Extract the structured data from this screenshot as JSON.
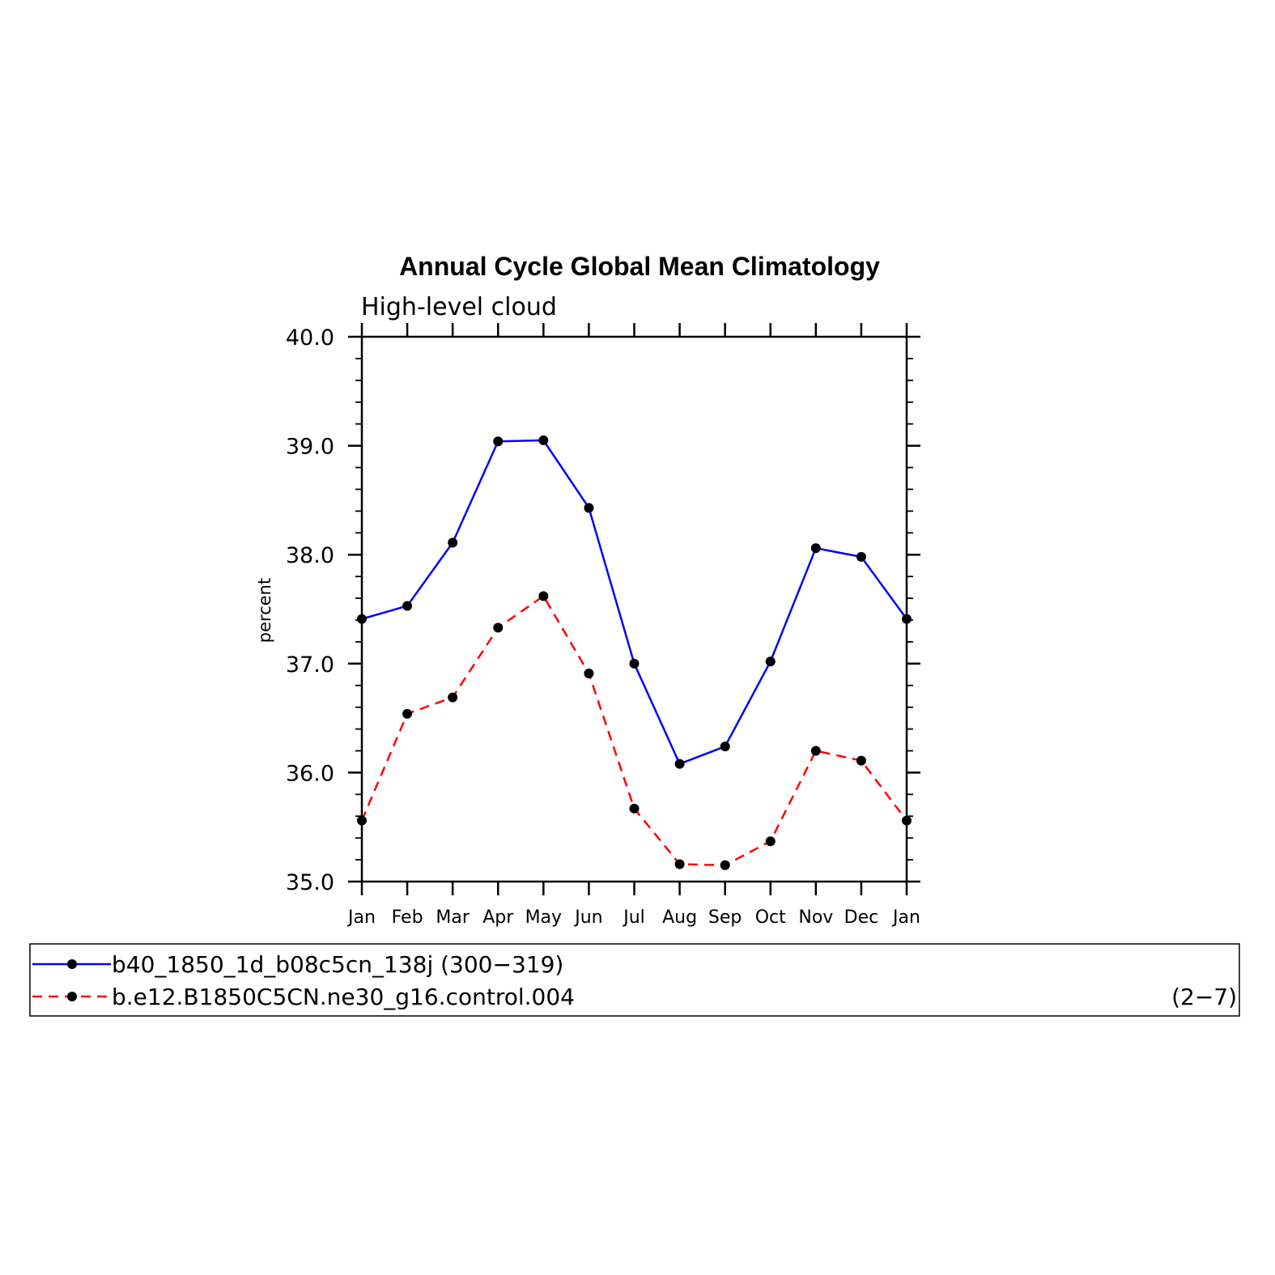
{
  "chart_data": {
    "type": "line",
    "title": "Annual Cycle Global Mean Climatology",
    "subtitle": "High-level cloud",
    "ylabel": "percent",
    "xlabel": "",
    "categories": [
      "Jan",
      "Feb",
      "Mar",
      "Apr",
      "May",
      "Jun",
      "Jul",
      "Aug",
      "Sep",
      "Oct",
      "Nov",
      "Dec",
      "Jan"
    ],
    "ylim": [
      35.0,
      40.0
    ],
    "yticks": [
      "35.0",
      "36.0",
      "37.0",
      "38.0",
      "39.0",
      "40.0"
    ],
    "series": [
      {
        "name": "b40_1850_1d_b08c5cn_138j (300-319)",
        "color": "#0000ff",
        "dash": "solid",
        "values": [
          37.41,
          37.53,
          38.11,
          39.04,
          39.05,
          38.43,
          37.0,
          36.08,
          36.24,
          37.02,
          38.06,
          37.98,
          37.41
        ]
      },
      {
        "name": "b.e12.B1850C5CN.ne30_g16.control.004",
        "color": "#ff0000",
        "dash": "dashed",
        "values": [
          35.56,
          36.54,
          36.69,
          37.33,
          37.62,
          36.91,
          35.67,
          35.16,
          35.15,
          35.37,
          36.2,
          36.11,
          35.56
        ]
      }
    ],
    "legend": {
      "position": "bottom",
      "entries": [
        "b40_1850_1d_b08c5cn_138j (300−319)",
        "b.e12.B1850C5CN.ne30_g16.control.004"
      ],
      "note": "(2−7)"
    }
  }
}
